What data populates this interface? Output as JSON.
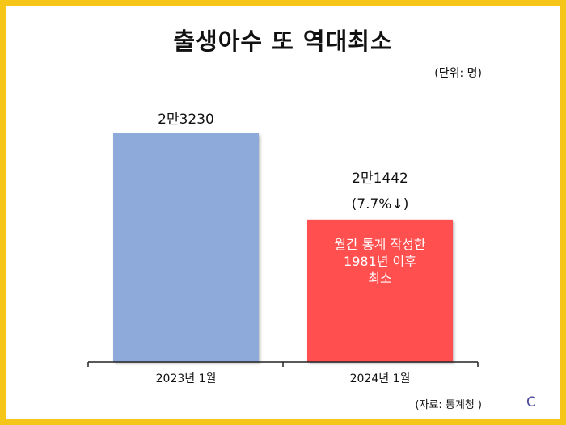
{
  "title": "출생아수 또 역대최소",
  "unit_label": "(단위: 명)",
  "source_label": "(자료: 통계청 )",
  "corner_mark": "C",
  "colors": {
    "frame": "#f5c518",
    "bar_2023": "#8eaadb",
    "bar_2024": "#ff5050",
    "axis": "#222222"
  },
  "chart_data": {
    "type": "bar",
    "title": "출생아수 또 역대최소",
    "categories": [
      "2023년 1월",
      "2024년 1월"
    ],
    "values": [
      23230,
      21442
    ],
    "value_labels": [
      "2만3230",
      "2만1442"
    ],
    "change_label": "(7.7%↓)",
    "bar_annotation": [
      "월간 통계 작성한",
      "1981년 이후",
      "최소"
    ],
    "unit": "(단위: 명)",
    "ylim": [
      20000,
      23230
    ],
    "grid": false,
    "legend": "none"
  }
}
